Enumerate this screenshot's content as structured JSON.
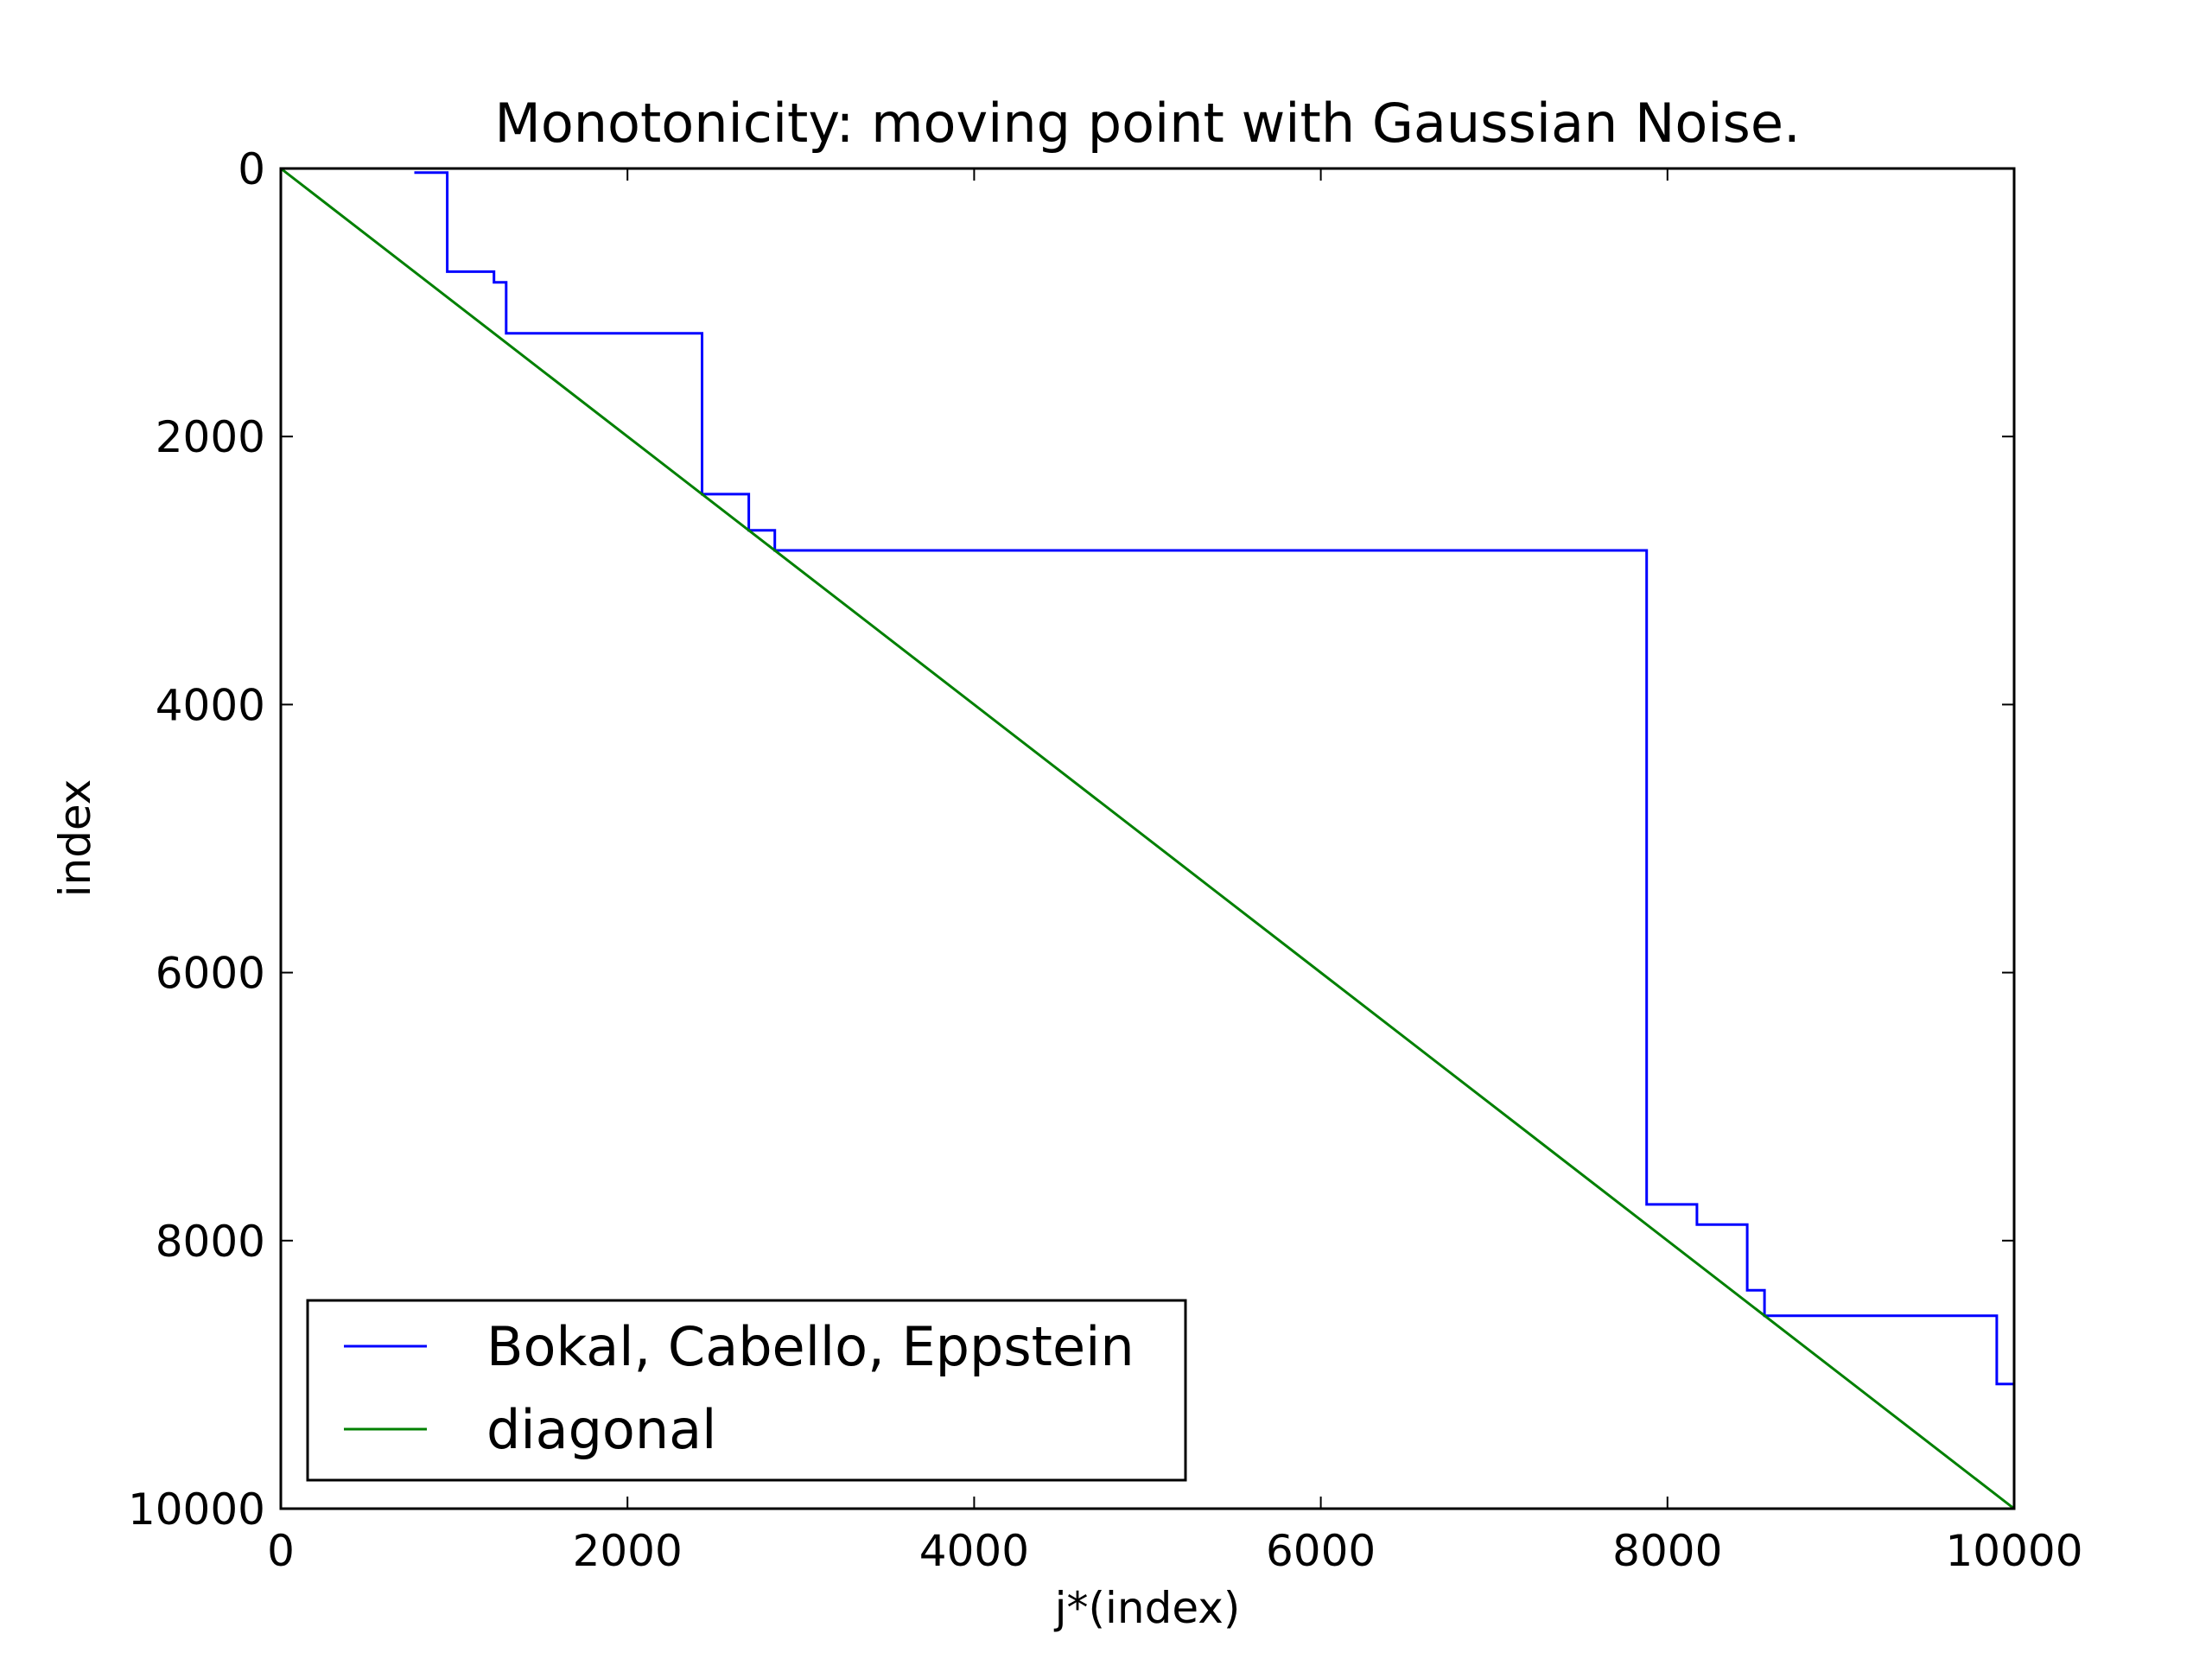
{
  "chart_data": {
    "type": "line",
    "title": "Monotonicity: moving point with Gaussian Noise.",
    "xlabel": "j*(index)",
    "ylabel": "index",
    "xlim": [
      0,
      10000
    ],
    "ylim": [
      10000,
      0
    ],
    "y_inverted": true,
    "grid": false,
    "legend_position": "lower-left",
    "xticks": [
      0,
      2000,
      4000,
      6000,
      8000,
      10000
    ],
    "yticks": [
      0,
      2000,
      4000,
      6000,
      8000,
      10000
    ],
    "xtick_labels": [
      "0",
      "2000",
      "4000",
      "6000",
      "8000",
      "10000"
    ],
    "ytick_labels": [
      "0",
      "2000",
      "4000",
      "6000",
      "8000",
      "10000"
    ],
    "series": [
      {
        "name": "Bokal, Cabello, Eppstein",
        "color": "#0000ff",
        "points": [
          [
            770,
            30
          ],
          [
            960,
            30
          ],
          [
            960,
            770
          ],
          [
            1230,
            770
          ],
          [
            1230,
            850
          ],
          [
            1300,
            850
          ],
          [
            1300,
            1230
          ],
          [
            2430,
            1230
          ],
          [
            2430,
            2430
          ],
          [
            2700,
            2430
          ],
          [
            2700,
            2700
          ],
          [
            2850,
            2700
          ],
          [
            2850,
            2850
          ],
          [
            7880,
            2850
          ],
          [
            7880,
            7730
          ],
          [
            8170,
            7730
          ],
          [
            8170,
            7880
          ],
          [
            8460,
            7880
          ],
          [
            8460,
            8370
          ],
          [
            8560,
            8370
          ],
          [
            8560,
            8560
          ],
          [
            9900,
            8560
          ],
          [
            9900,
            9070
          ],
          [
            10000,
            9070
          ]
        ]
      },
      {
        "name": "diagonal",
        "color": "#008000",
        "points": [
          [
            0,
            0
          ],
          [
            10000,
            10000
          ]
        ]
      }
    ]
  }
}
